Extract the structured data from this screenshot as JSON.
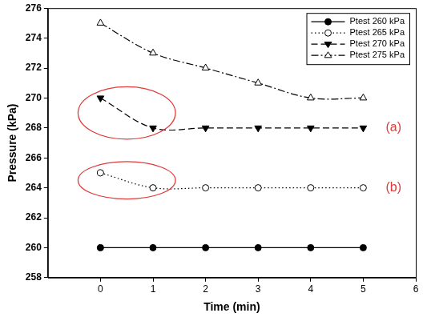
{
  "chart_data": {
    "type": "line",
    "x_label": "Time (min)",
    "y_label": "Pressure (kPa)",
    "x": [
      0,
      1,
      2,
      3,
      4,
      5
    ],
    "series": [
      {
        "name": "Ptest 260 kPa",
        "color": "#000000",
        "marker": "filled_circle",
        "line_style": "solid",
        "values": [
          260,
          260,
          260,
          260,
          260,
          260
        ]
      },
      {
        "name": "Ptest 265 kPa",
        "color": "#000000",
        "marker": "open_circle",
        "line_style": "dotted",
        "values": [
          265,
          264,
          264,
          264,
          264,
          264
        ]
      },
      {
        "name": "Ptest 270 kPa",
        "color": "#000000",
        "marker": "filled_triangle_down",
        "line_style": "dashed",
        "values": [
          270,
          268,
          268,
          268,
          268,
          268
        ]
      },
      {
        "name": "Ptest 275 kPa",
        "color": "#000000",
        "marker": "open_triangle",
        "line_style": "dashdot",
        "values": [
          275,
          273,
          272,
          271,
          270,
          270
        ]
      }
    ],
    "xlim": [
      -1,
      6
    ],
    "ylim": [
      258,
      276
    ],
    "xticks": [
      0,
      1,
      2,
      3,
      4,
      5,
      6
    ],
    "yticks": [
      258,
      260,
      262,
      264,
      266,
      268,
      270,
      272,
      274,
      276
    ],
    "grid": false,
    "legend": "upper right",
    "annotations": [
      {
        "text": "(a)",
        "series": "Ptest 270 kPa",
        "color": "#e03a3a"
      },
      {
        "text": "(b)",
        "series": "Ptest 265 kPa",
        "color": "#e03a3a"
      }
    ]
  }
}
